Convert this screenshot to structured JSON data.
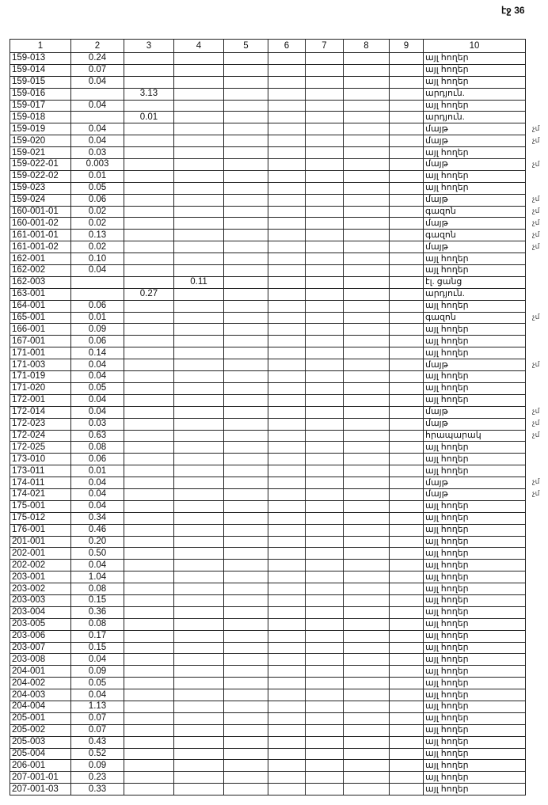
{
  "page_number": "էջ 36",
  "headers": [
    "1",
    "2",
    "3",
    "4",
    "5",
    "6",
    "7",
    "8",
    "9",
    "10"
  ],
  "rows": [
    {
      "id": "159-013",
      "c2": "0.24",
      "c10": "այլ հողեր"
    },
    {
      "id": "159-014",
      "c2": "0.07",
      "c10": "այլ հողեր"
    },
    {
      "id": "159-015",
      "c2": "0.04",
      "c10": "այլ հողեր"
    },
    {
      "id": "159-016",
      "c3": "3.13",
      "c10": "արդյուն."
    },
    {
      "id": "159-017",
      "c2": "0.04",
      "c10": "այլ հողեր"
    },
    {
      "id": "159-018",
      "c3": "0.01",
      "c10": "արդյուն."
    },
    {
      "id": "159-019",
      "c2": "0.04",
      "c10": "մայթ",
      "note": "չմ"
    },
    {
      "id": "159-020",
      "c2": "0.04",
      "c10": "մայթ",
      "note": "չմ"
    },
    {
      "id": "159-021",
      "c2": "0.03",
      "c10": "այլ հողեր"
    },
    {
      "id": "159-022-01",
      "c2": "0.003",
      "c10": "մայթ",
      "note": "չմ"
    },
    {
      "id": "159-022-02",
      "c2": "0.01",
      "c10": "այլ հողեր"
    },
    {
      "id": "159-023",
      "c2": "0.05",
      "c10": "այլ հողեր"
    },
    {
      "id": "159-024",
      "c2": "0.06",
      "c10": "մայթ",
      "note": "չմ"
    },
    {
      "id": "160-001-01",
      "c2": "0.02",
      "c10": "գազոն",
      "note": "չմ"
    },
    {
      "id": "160-001-02",
      "c2": "0.02",
      "c10": "մայթ",
      "note": "չմ"
    },
    {
      "id": "161-001-01",
      "c2": "0.13",
      "c10": "գազոն",
      "note": "չմ"
    },
    {
      "id": "161-001-02",
      "c2": "0.02",
      "c10": "մայթ",
      "note": "չմ"
    },
    {
      "id": "162-001",
      "c2": "0.10",
      "c10": "այլ հողեր"
    },
    {
      "id": "162-002",
      "c2": "0.04",
      "c10": "այլ հողեր"
    },
    {
      "id": "162-003",
      "c4": "0.11",
      "c10": "էլ. ցանց"
    },
    {
      "id": "163-001",
      "c3": "0.27",
      "c10": "արդյուն."
    },
    {
      "id": "164-001",
      "c2": "0.06",
      "c10": "այլ հողեր"
    },
    {
      "id": "165-001",
      "c2": "0.01",
      "c10": "գազոն",
      "note": "չմ"
    },
    {
      "id": "166-001",
      "c2": "0.09",
      "c10": "այլ հողեր"
    },
    {
      "id": "167-001",
      "c2": "0.06",
      "c10": "այլ հողեր"
    },
    {
      "id": "171-001",
      "c2": "0.14",
      "c10": "այլ հողեր"
    },
    {
      "id": "171-003",
      "c2": "0.04",
      "c10": "մայթ",
      "note": "չմ"
    },
    {
      "id": "171-019",
      "c2": "0.04",
      "c10": "այլ հողեր"
    },
    {
      "id": "171-020",
      "c2": "0.05",
      "c10": "այլ հողեր"
    },
    {
      "id": "172-001",
      "c2": "0.04",
      "c10": "այլ հողեր"
    },
    {
      "id": "172-014",
      "c2": "0.04",
      "c10": "մայթ",
      "note": "չմ"
    },
    {
      "id": "172-023",
      "c2": "0.03",
      "c10": "մայթ",
      "note": "չմ"
    },
    {
      "id": "172-024",
      "c2": "0.63",
      "c10": "հրապարակ",
      "note": "չմ"
    },
    {
      "id": "172-025",
      "c2": "0.08",
      "c10": "այլ հողեր"
    },
    {
      "id": "173-010",
      "c2": "0.06",
      "c10": "այլ հողեր"
    },
    {
      "id": "173-011",
      "c2": "0.01",
      "c10": "այլ հողեր"
    },
    {
      "id": "174-011",
      "c2": "0.04",
      "c10": "մայթ",
      "note": "չմ"
    },
    {
      "id": "174-021",
      "c2": "0.04",
      "c10": "մայթ",
      "note": "չմ"
    },
    {
      "id": "175-001",
      "c2": "0.04",
      "c10": "այլ հողեր"
    },
    {
      "id": "175-012",
      "c2": "0.34",
      "c10": "այլ հողեր"
    },
    {
      "id": "176-001",
      "c2": "0.46",
      "c10": "այլ հողեր"
    },
    {
      "id": "201-001",
      "c2": "0.20",
      "c10": "այլ հողեր"
    },
    {
      "id": "202-001",
      "c2": "0.50",
      "c10": "այլ հողեր"
    },
    {
      "id": "202-002",
      "c2": "0.04",
      "c10": "այլ հողեր"
    },
    {
      "id": "203-001",
      "c2": "1.04",
      "c10": "այլ հողեր"
    },
    {
      "id": "203-002",
      "c2": "0.08",
      "c10": "այլ հողեր"
    },
    {
      "id": "203-003",
      "c2": "0.15",
      "c10": "այլ հողեր"
    },
    {
      "id": "203-004",
      "c2": "0.36",
      "c10": "այլ հողեր"
    },
    {
      "id": "203-005",
      "c2": "0.08",
      "c10": "այլ հողեր"
    },
    {
      "id": "203-006",
      "c2": "0.17",
      "c10": "այլ հողեր"
    },
    {
      "id": "203-007",
      "c2": "0.15",
      "c10": "այլ հողեր"
    },
    {
      "id": "203-008",
      "c2": "0.04",
      "c10": "այլ հողեր"
    },
    {
      "id": "204-001",
      "c2": "0.09",
      "c10": "այլ հողեր"
    },
    {
      "id": "204-002",
      "c2": "0.05",
      "c10": "այլ հողեր"
    },
    {
      "id": "204-003",
      "c2": "0.04",
      "c10": "այլ հողեր"
    },
    {
      "id": "204-004",
      "c2": "1.13",
      "c10": "այլ հողեր"
    },
    {
      "id": "205-001",
      "c2": "0.07",
      "c10": "այլ հողեր"
    },
    {
      "id": "205-002",
      "c2": "0.07",
      "c10": "այլ հողեր"
    },
    {
      "id": "205-003",
      "c2": "0.43",
      "c10": "այլ հողեր"
    },
    {
      "id": "205-004",
      "c2": "0.52",
      "c10": "այլ հողեր"
    },
    {
      "id": "206-001",
      "c2": "0.09",
      "c10": "այլ հողեր"
    },
    {
      "id": "207-001-01",
      "c2": "0.23",
      "c10": "այլ հողեր"
    },
    {
      "id": "207-001-03",
      "c2": "0.33",
      "c10": "այլ հողեր"
    }
  ]
}
